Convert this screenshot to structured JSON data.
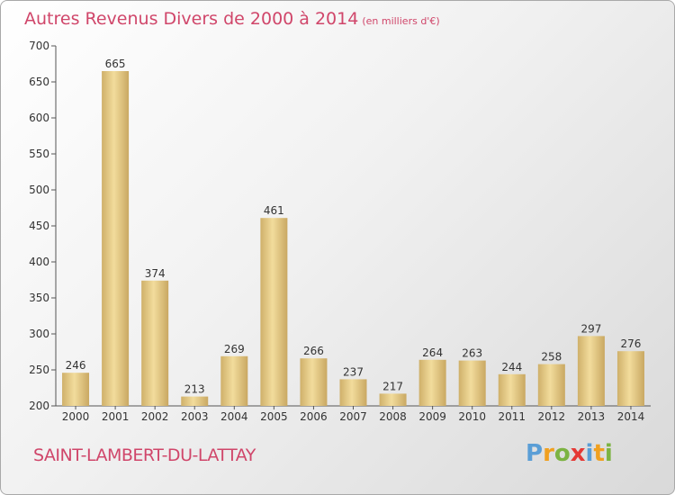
{
  "chart_data": {
    "type": "bar",
    "title": "Autres Revenus Divers de 2000 à 2014",
    "subtitle": "(en milliers d'€)",
    "categories": [
      "2000",
      "2001",
      "2002",
      "2003",
      "2004",
      "2005",
      "2006",
      "2007",
      "2008",
      "2009",
      "2010",
      "2011",
      "2012",
      "2013",
      "2014"
    ],
    "values": [
      246,
      665,
      374,
      213,
      269,
      461,
      266,
      237,
      217,
      264,
      263,
      244,
      258,
      297,
      276
    ],
    "ylim": [
      200,
      700
    ],
    "yticks": [
      200,
      250,
      300,
      350,
      400,
      450,
      500,
      550,
      600,
      650,
      700
    ],
    "xlabel": "",
    "ylabel": "",
    "grid": false,
    "bar_color": "#e7cf8a"
  },
  "footer": {
    "commune": "SAINT-LAMBERT-DU-LATTAY",
    "logo_letters": [
      "P",
      "r",
      "o",
      "x",
      "i",
      "t",
      "i"
    ],
    "logo_colors": [
      "#5a9ed6",
      "#f0a020",
      "#7cb342",
      "#e53935",
      "#5a9ed6",
      "#f0a020",
      "#7cb342"
    ]
  }
}
